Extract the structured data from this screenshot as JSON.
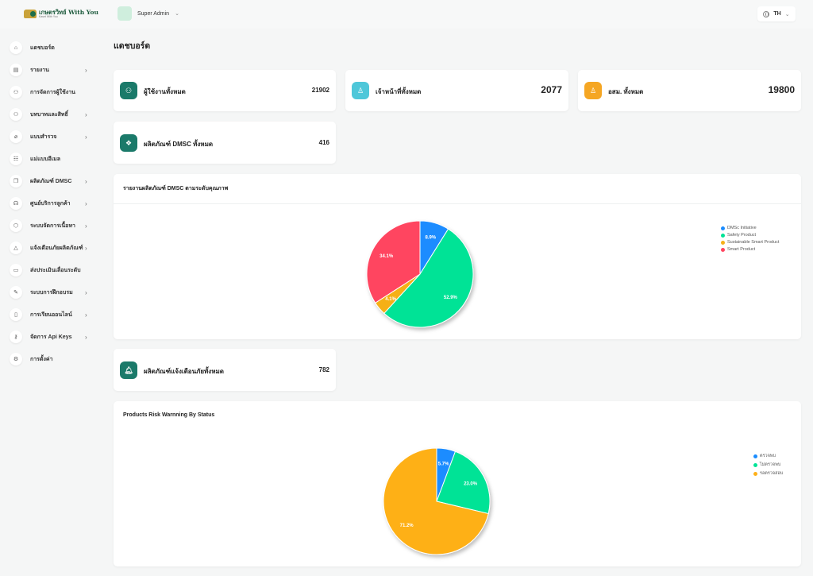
{
  "app": {
    "logo_main": "เกษตรวิทย์ With You",
    "logo_sub": "Kaset With You",
    "user_name": "Super Admin",
    "language": "TH"
  },
  "sidebar": {
    "items": [
      {
        "label": "แดชบอร์ด",
        "icon": "home-icon",
        "glyph": "⌂",
        "has_submenu": false
      },
      {
        "label": "รายงาน",
        "icon": "report-icon",
        "glyph": "▤",
        "has_submenu": true
      },
      {
        "label": "การจัดการผู้ใช้งาน",
        "icon": "users-icon",
        "glyph": "⚇",
        "has_submenu": false
      },
      {
        "label": "บทบาทและสิทธิ์",
        "icon": "roles-icon",
        "glyph": "⚇",
        "has_submenu": true
      },
      {
        "label": "แบบสำรวจ",
        "icon": "paperclip-icon",
        "glyph": "⌀",
        "has_submenu": true
      },
      {
        "label": "แม่แบบอีเมล",
        "icon": "template-icon",
        "glyph": "☷",
        "has_submenu": false
      },
      {
        "label": "ผลิตภัณฑ์ DMSC",
        "icon": "product-icon",
        "glyph": "❐",
        "has_submenu": true
      },
      {
        "label": "ศูนย์บริการลูกค้า",
        "icon": "headset-icon",
        "glyph": "☊",
        "has_submenu": true
      },
      {
        "label": "ระบบจัดการเนื้อหา",
        "icon": "box-icon",
        "glyph": "⬡",
        "has_submenu": true
      },
      {
        "label": "แจ้งเตือนภัยผลิตภัณฑ์",
        "icon": "warning-icon",
        "glyph": "△",
        "has_submenu": true
      },
      {
        "label": "ส่งประเมินเลื่อนระดับ",
        "icon": "archive-icon",
        "glyph": "▭",
        "has_submenu": false
      },
      {
        "label": "ระบบการฝึกอบรม",
        "icon": "wand-icon",
        "glyph": "✎",
        "has_submenu": true
      },
      {
        "label": "การเรียนออนไลน์",
        "icon": "book-icon",
        "glyph": "▯",
        "has_submenu": true
      },
      {
        "label": "จัดการ Api Keys",
        "icon": "key-icon",
        "glyph": "⚷",
        "has_submenu": true
      },
      {
        "label": "การตั้งค่า",
        "icon": "settings-icon",
        "glyph": "⚙",
        "has_submenu": false
      }
    ]
  },
  "page": {
    "title": "แดชบอร์ด"
  },
  "stats": {
    "all_users": {
      "label": "ผู้ใช้งานทั้งหมด",
      "value": "21902",
      "icon": "users-group-icon",
      "color": "#1b7a6a"
    },
    "all_officers": {
      "label": "เจ้าหน้าที่ทั้งหมด",
      "value": "2077",
      "icon": "officer-icon",
      "color": "#4ec7d9"
    },
    "all_volunteers": {
      "label": "อสม. ทั้งหมด",
      "value": "19800",
      "icon": "volunteer-icon",
      "color": "#f5a623"
    },
    "all_products": {
      "label": "ผลิตภัณฑ์ DMSC ทั้งหมด",
      "value": "416",
      "icon": "products-icon",
      "color": "#1b7a6a"
    },
    "all_alerts": {
      "label": "ผลิตภัณฑ์แจ้งเตือนภัยทั้งหมด",
      "value": "782",
      "icon": "bell-icon",
      "color": "#1b7a6a"
    }
  },
  "chart_data": [
    {
      "type": "pie",
      "title": "รายงานผลิตภัณฑ์ DMSC ตามระดับคุณภาพ",
      "legend_position": "right",
      "labels": [
        "DMSc Initiative",
        "Safety Product",
        "Sustainable Smart Product",
        "Smart Product"
      ],
      "values": [
        8.9,
        52.9,
        4.1,
        34.1
      ],
      "value_labels": [
        "8.9%",
        "52.9%",
        "4.1%",
        "34.1%"
      ],
      "colors": [
        "#1a8cff",
        "#00e396",
        "#f5b019",
        "#ff4560"
      ]
    },
    {
      "type": "pie",
      "title": "Products Risk Warnning By Status",
      "legend_position": "right",
      "labels": [
        "ตรวจพบ",
        "ไม่ตรวจพบ",
        "รอตรวจสอบ"
      ],
      "values": [
        5.7,
        23.0,
        71.2
      ],
      "value_labels": [
        "5.7%",
        "23.0%",
        "71.2%"
      ],
      "colors": [
        "#1a8cff",
        "#00e396",
        "#feb019"
      ]
    }
  ]
}
